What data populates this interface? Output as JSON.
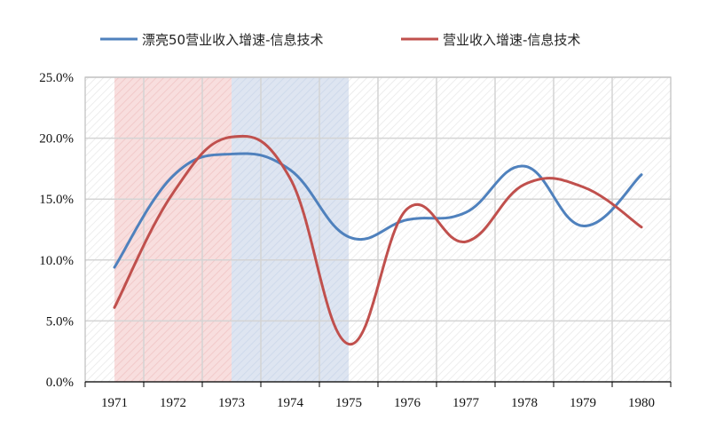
{
  "chart_data": {
    "type": "line",
    "title": "",
    "xlabel": "",
    "ylabel": "",
    "categories": [
      "1971",
      "1972",
      "1973",
      "1974",
      "1975",
      "1976",
      "1977",
      "1978",
      "1979",
      "1980"
    ],
    "ylim": [
      0,
      0.25
    ],
    "yticks": [
      "0.0%",
      "5.0%",
      "10.0%",
      "15.0%",
      "20.0%",
      "25.0%"
    ],
    "grid": true,
    "legend_position": "top",
    "smooth": true,
    "series": [
      {
        "name": "漂亮50营业收入增速-信息技术",
        "color": "#4F81BD",
        "values": [
          0.094,
          0.169,
          0.187,
          0.174,
          0.119,
          0.133,
          0.139,
          0.177,
          0.128,
          0.17
        ]
      },
      {
        "name": "营业收入增速-信息技术",
        "color": "#C0504D",
        "values": [
          0.061,
          0.155,
          0.201,
          0.167,
          0.031,
          0.142,
          0.115,
          0.162,
          0.16,
          0.127
        ]
      }
    ],
    "shaded_regions": [
      {
        "from": "1971",
        "to": "1973",
        "color": "#F2C4C4"
      },
      {
        "from": "1973",
        "to": "1975",
        "color": "#C9D6EA"
      }
    ]
  }
}
